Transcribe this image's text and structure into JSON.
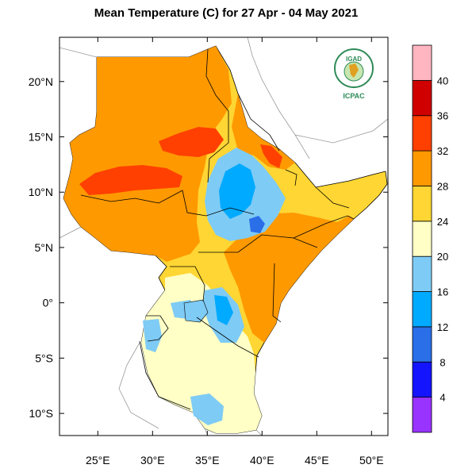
{
  "title": "Mean Temperature (C) for 27 Apr - 04 May 2021",
  "logo": {
    "top_text": "IGAD",
    "bottom_text": "ICPAC"
  },
  "map": {
    "lon_range": [
      21.5,
      51.5
    ],
    "lat_range": [
      -12,
      24
    ],
    "x_ticks": [
      {
        "value": 25,
        "label": "25°E"
      },
      {
        "value": 30,
        "label": "30°E"
      },
      {
        "value": 35,
        "label": "35°E"
      },
      {
        "value": 40,
        "label": "40°E"
      },
      {
        "value": 45,
        "label": "45°E"
      },
      {
        "value": 50,
        "label": "50°E"
      }
    ],
    "y_ticks": [
      {
        "value": 20,
        "label": "20°N"
      },
      {
        "value": 15,
        "label": "15°N"
      },
      {
        "value": 10,
        "label": "10°N"
      },
      {
        "value": 5,
        "label": "5°N"
      },
      {
        "value": 0,
        "label": "0°"
      },
      {
        "value": -5,
        "label": "5°S"
      },
      {
        "value": -10,
        "label": "10°S"
      }
    ]
  },
  "colorbar": {
    "bins": [
      {
        "color": "#9933ff"
      },
      {
        "color": "#1414ff"
      },
      {
        "color": "#2a6ee8"
      },
      {
        "color": "#00aaff"
      },
      {
        "color": "#7ecbf5"
      },
      {
        "color": "#ffffc6"
      },
      {
        "color": "#ffd633"
      },
      {
        "color": "#ff9900"
      },
      {
        "color": "#ff4000"
      },
      {
        "color": "#d10000"
      },
      {
        "color": "#ffb6c1"
      }
    ],
    "labels": [
      "4",
      "8",
      "12",
      "16",
      "20",
      "24",
      "28",
      "32",
      "36",
      "40"
    ]
  },
  "region_colors": {
    "hot": "#ff9900",
    "very_hot": "#ff4000",
    "warm": "#ffd633",
    "mild": "#ffffc6",
    "cool": "#7ecbf5",
    "cold": "#00aaff",
    "colder": "#2a6ee8",
    "water": "#ffffff"
  }
}
